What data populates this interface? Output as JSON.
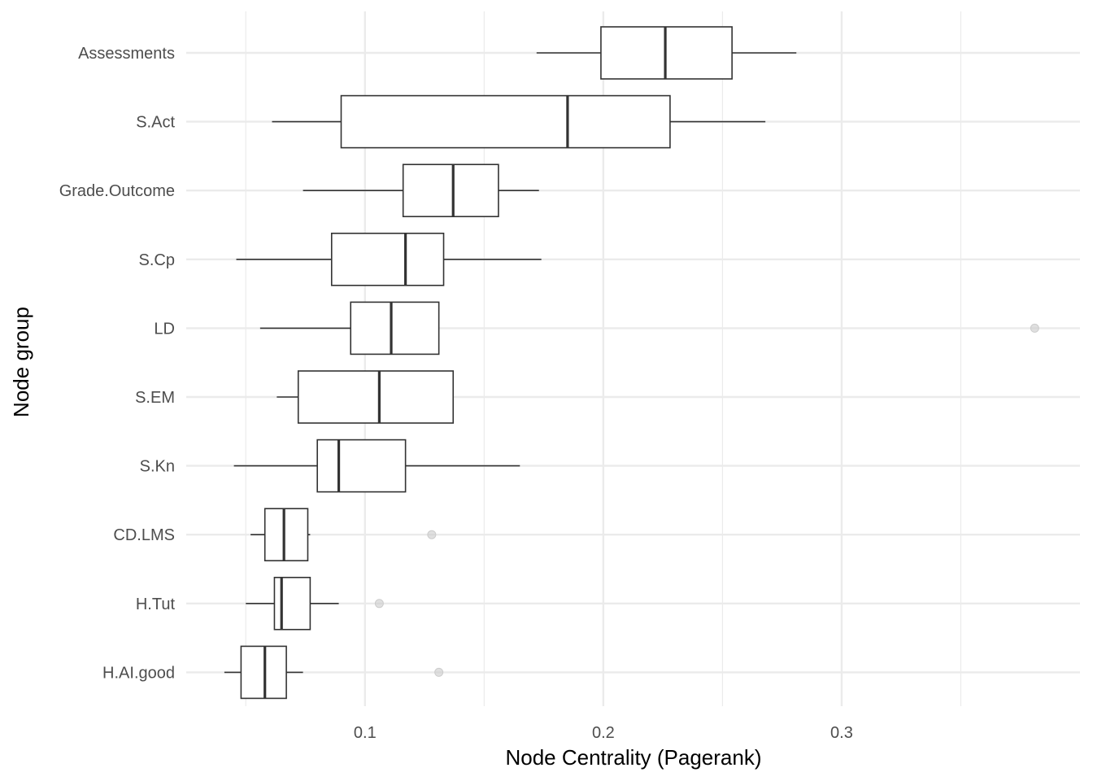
{
  "chart_data": {
    "type": "boxplot",
    "orientation": "horizontal",
    "xlabel": "Node Centrality (Pagerank)",
    "ylabel": "Node group",
    "xlim": [
      0.025,
      0.4
    ],
    "x_ticks": [
      0.1,
      0.2,
      0.3
    ],
    "x_tick_labels": [
      "0.1",
      "0.2",
      "0.3"
    ],
    "x_minor_ticks": [
      0.05,
      0.15,
      0.25,
      0.35
    ],
    "grid": true,
    "colors": {
      "box": "#333333",
      "grid": "#ebebeb",
      "outlier": "#cccccc",
      "background": "#ffffff"
    },
    "categories": [
      "Assessments",
      "S.Act",
      "Grade.Outcome",
      "S.Cp",
      "LD",
      "S.EM",
      "S.Kn",
      "CD.LMS",
      "H.Tut",
      "H.AI.good"
    ],
    "boxes": [
      {
        "category": "Assessments",
        "min": 0.172,
        "q1": 0.199,
        "median": 0.226,
        "q3": 0.254,
        "max": 0.281,
        "outliers": []
      },
      {
        "category": "S.Act",
        "min": 0.061,
        "q1": 0.09,
        "median": 0.185,
        "q3": 0.228,
        "max": 0.268,
        "outliers": []
      },
      {
        "category": "Grade.Outcome",
        "min": 0.074,
        "q1": 0.116,
        "median": 0.137,
        "q3": 0.156,
        "max": 0.173,
        "outliers": []
      },
      {
        "category": "S.Cp",
        "min": 0.046,
        "q1": 0.086,
        "median": 0.117,
        "q3": 0.133,
        "max": 0.174,
        "outliers": []
      },
      {
        "category": "LD",
        "min": 0.056,
        "q1": 0.094,
        "median": 0.111,
        "q3": 0.131,
        "max": 0.131,
        "outliers": [
          0.381
        ]
      },
      {
        "category": "S.EM",
        "min": 0.063,
        "q1": 0.072,
        "median": 0.106,
        "q3": 0.137,
        "max": 0.137,
        "outliers": []
      },
      {
        "category": "S.Kn",
        "min": 0.045,
        "q1": 0.08,
        "median": 0.089,
        "q3": 0.117,
        "max": 0.165,
        "outliers": []
      },
      {
        "category": "CD.LMS",
        "min": 0.052,
        "q1": 0.058,
        "median": 0.066,
        "q3": 0.076,
        "max": 0.077,
        "outliers": [
          0.128
        ]
      },
      {
        "category": "H.Tut",
        "min": 0.05,
        "q1": 0.062,
        "median": 0.065,
        "q3": 0.077,
        "max": 0.089,
        "outliers": [
          0.106
        ]
      },
      {
        "category": "H.AI.good",
        "min": 0.041,
        "q1": 0.048,
        "median": 0.058,
        "q3": 0.067,
        "max": 0.074,
        "outliers": [
          0.131
        ]
      }
    ]
  }
}
